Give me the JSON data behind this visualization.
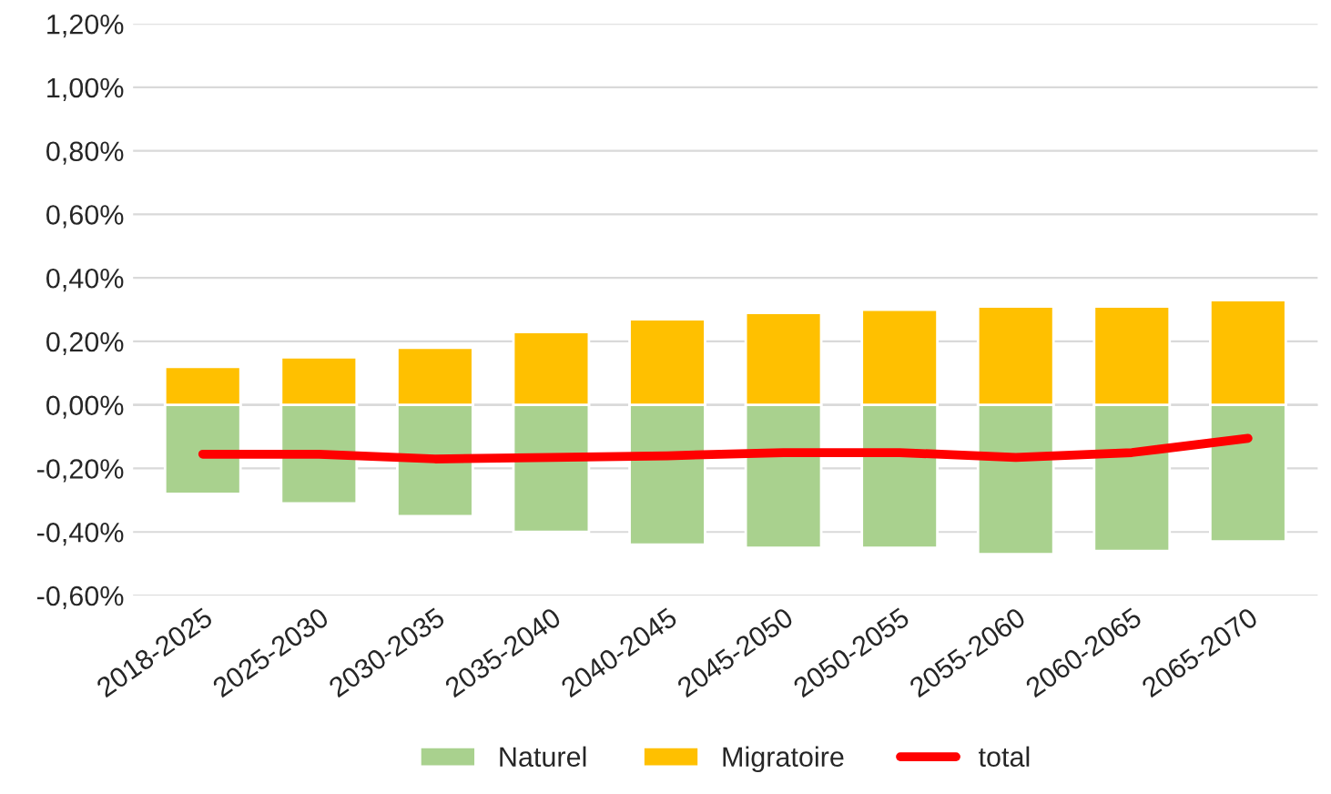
{
  "chart_data": {
    "type": "bar",
    "stacked": true,
    "categories": [
      "2018-2025",
      "2025-2030",
      "2030-2035",
      "2035-2040",
      "2040-2045",
      "2045-2050",
      "2050-2055",
      "2055-2060",
      "2060-2065",
      "2065-2070"
    ],
    "series": [
      {
        "name": "Naturel",
        "color": "#a9d18e",
        "values": [
          -0.28,
          -0.31,
          -0.35,
          -0.4,
          -0.44,
          -0.45,
          -0.45,
          -0.47,
          -0.46,
          -0.43
        ]
      },
      {
        "name": "Migratoire",
        "color": "#ffc000",
        "values": [
          0.12,
          0.15,
          0.18,
          0.23,
          0.27,
          0.29,
          0.3,
          0.31,
          0.31,
          0.33
        ]
      },
      {
        "name": "total",
        "type": "line",
        "color": "#ff0000",
        "values": [
          -0.155,
          -0.155,
          -0.17,
          -0.165,
          -0.16,
          -0.15,
          -0.15,
          -0.165,
          -0.15,
          -0.105
        ]
      }
    ],
    "ylim": [
      -0.6,
      1.2
    ],
    "yticks": [
      {
        "value": -0.6,
        "label": "-0,60%"
      },
      {
        "value": -0.4,
        "label": "-0,40%"
      },
      {
        "value": -0.2,
        "label": "-0,20%"
      },
      {
        "value": 0,
        "label": "0,00%"
      },
      {
        "value": 0.2,
        "label": "0,20%"
      },
      {
        "value": 0.4,
        "label": "0,40%"
      },
      {
        "value": 0.6,
        "label": "0,60%"
      },
      {
        "value": 0.8,
        "label": "0,80%"
      },
      {
        "value": 1.0,
        "label": "1,00%"
      },
      {
        "value": 1.2,
        "label": "1,20%"
      }
    ],
    "grid": "y",
    "legend": "bottom",
    "marker": "none",
    "line_style": "solid"
  }
}
